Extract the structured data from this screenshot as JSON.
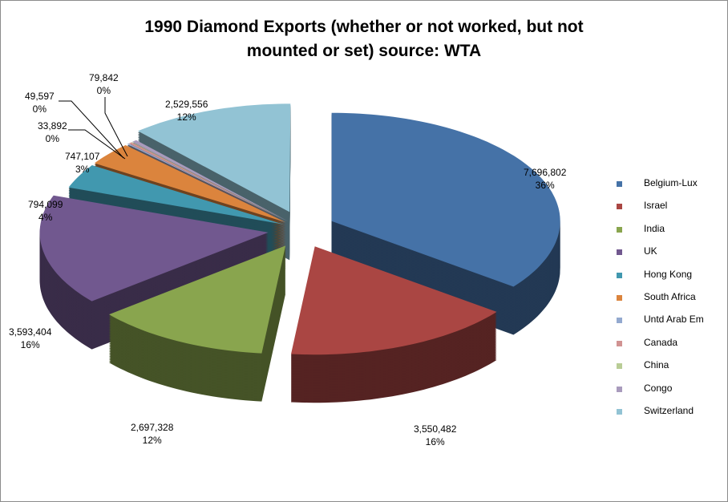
{
  "chart_data": {
    "type": "pie",
    "title_line1": "1990 Diamond Exports (whether or not worked, but not",
    "title_line2": "mounted or set) source: WTA",
    "legend_position": "right",
    "slices": [
      {
        "name": "Belgium-Lux",
        "value": 7696802,
        "value_label": "7,696,802",
        "pct_label": "36%",
        "color": "#4572A7"
      },
      {
        "name": "Israel",
        "value": 3550482,
        "value_label": "3,550,482",
        "pct_label": "16%",
        "color": "#AA4643"
      },
      {
        "name": "India",
        "value": 2697328,
        "value_label": "2,697,328",
        "pct_label": "12%",
        "color": "#89A54E"
      },
      {
        "name": "UK",
        "value": 3593404,
        "value_label": "3,593,404",
        "pct_label": "16%",
        "color": "#71588F"
      },
      {
        "name": "Hong Kong",
        "value": 794099,
        "value_label": "794,099",
        "pct_label": "4%",
        "color": "#4198AF"
      },
      {
        "name": "South Africa",
        "value": 747107,
        "value_label": "747,107",
        "pct_label": "3%",
        "color": "#DB843D"
      },
      {
        "name": "Untd Arab Em",
        "value": 33892,
        "value_label": "33,892",
        "pct_label": "0%",
        "color": "#93A9CF"
      },
      {
        "name": "Canada",
        "value": 49597,
        "value_label": "49,597",
        "pct_label": "0%",
        "color": "#D19392"
      },
      {
        "name": "China",
        "value": null,
        "value_label": null,
        "pct_label": null,
        "color": "#B9CD96"
      },
      {
        "name": "Congo",
        "value": 79842,
        "value_label": "79,842",
        "pct_label": "0%",
        "color": "#A99BBD"
      },
      {
        "name": "Switzerland",
        "value": 2529556,
        "value_label": "2,529,556",
        "pct_label": "12%",
        "color": "#92C3D4"
      }
    ]
  }
}
